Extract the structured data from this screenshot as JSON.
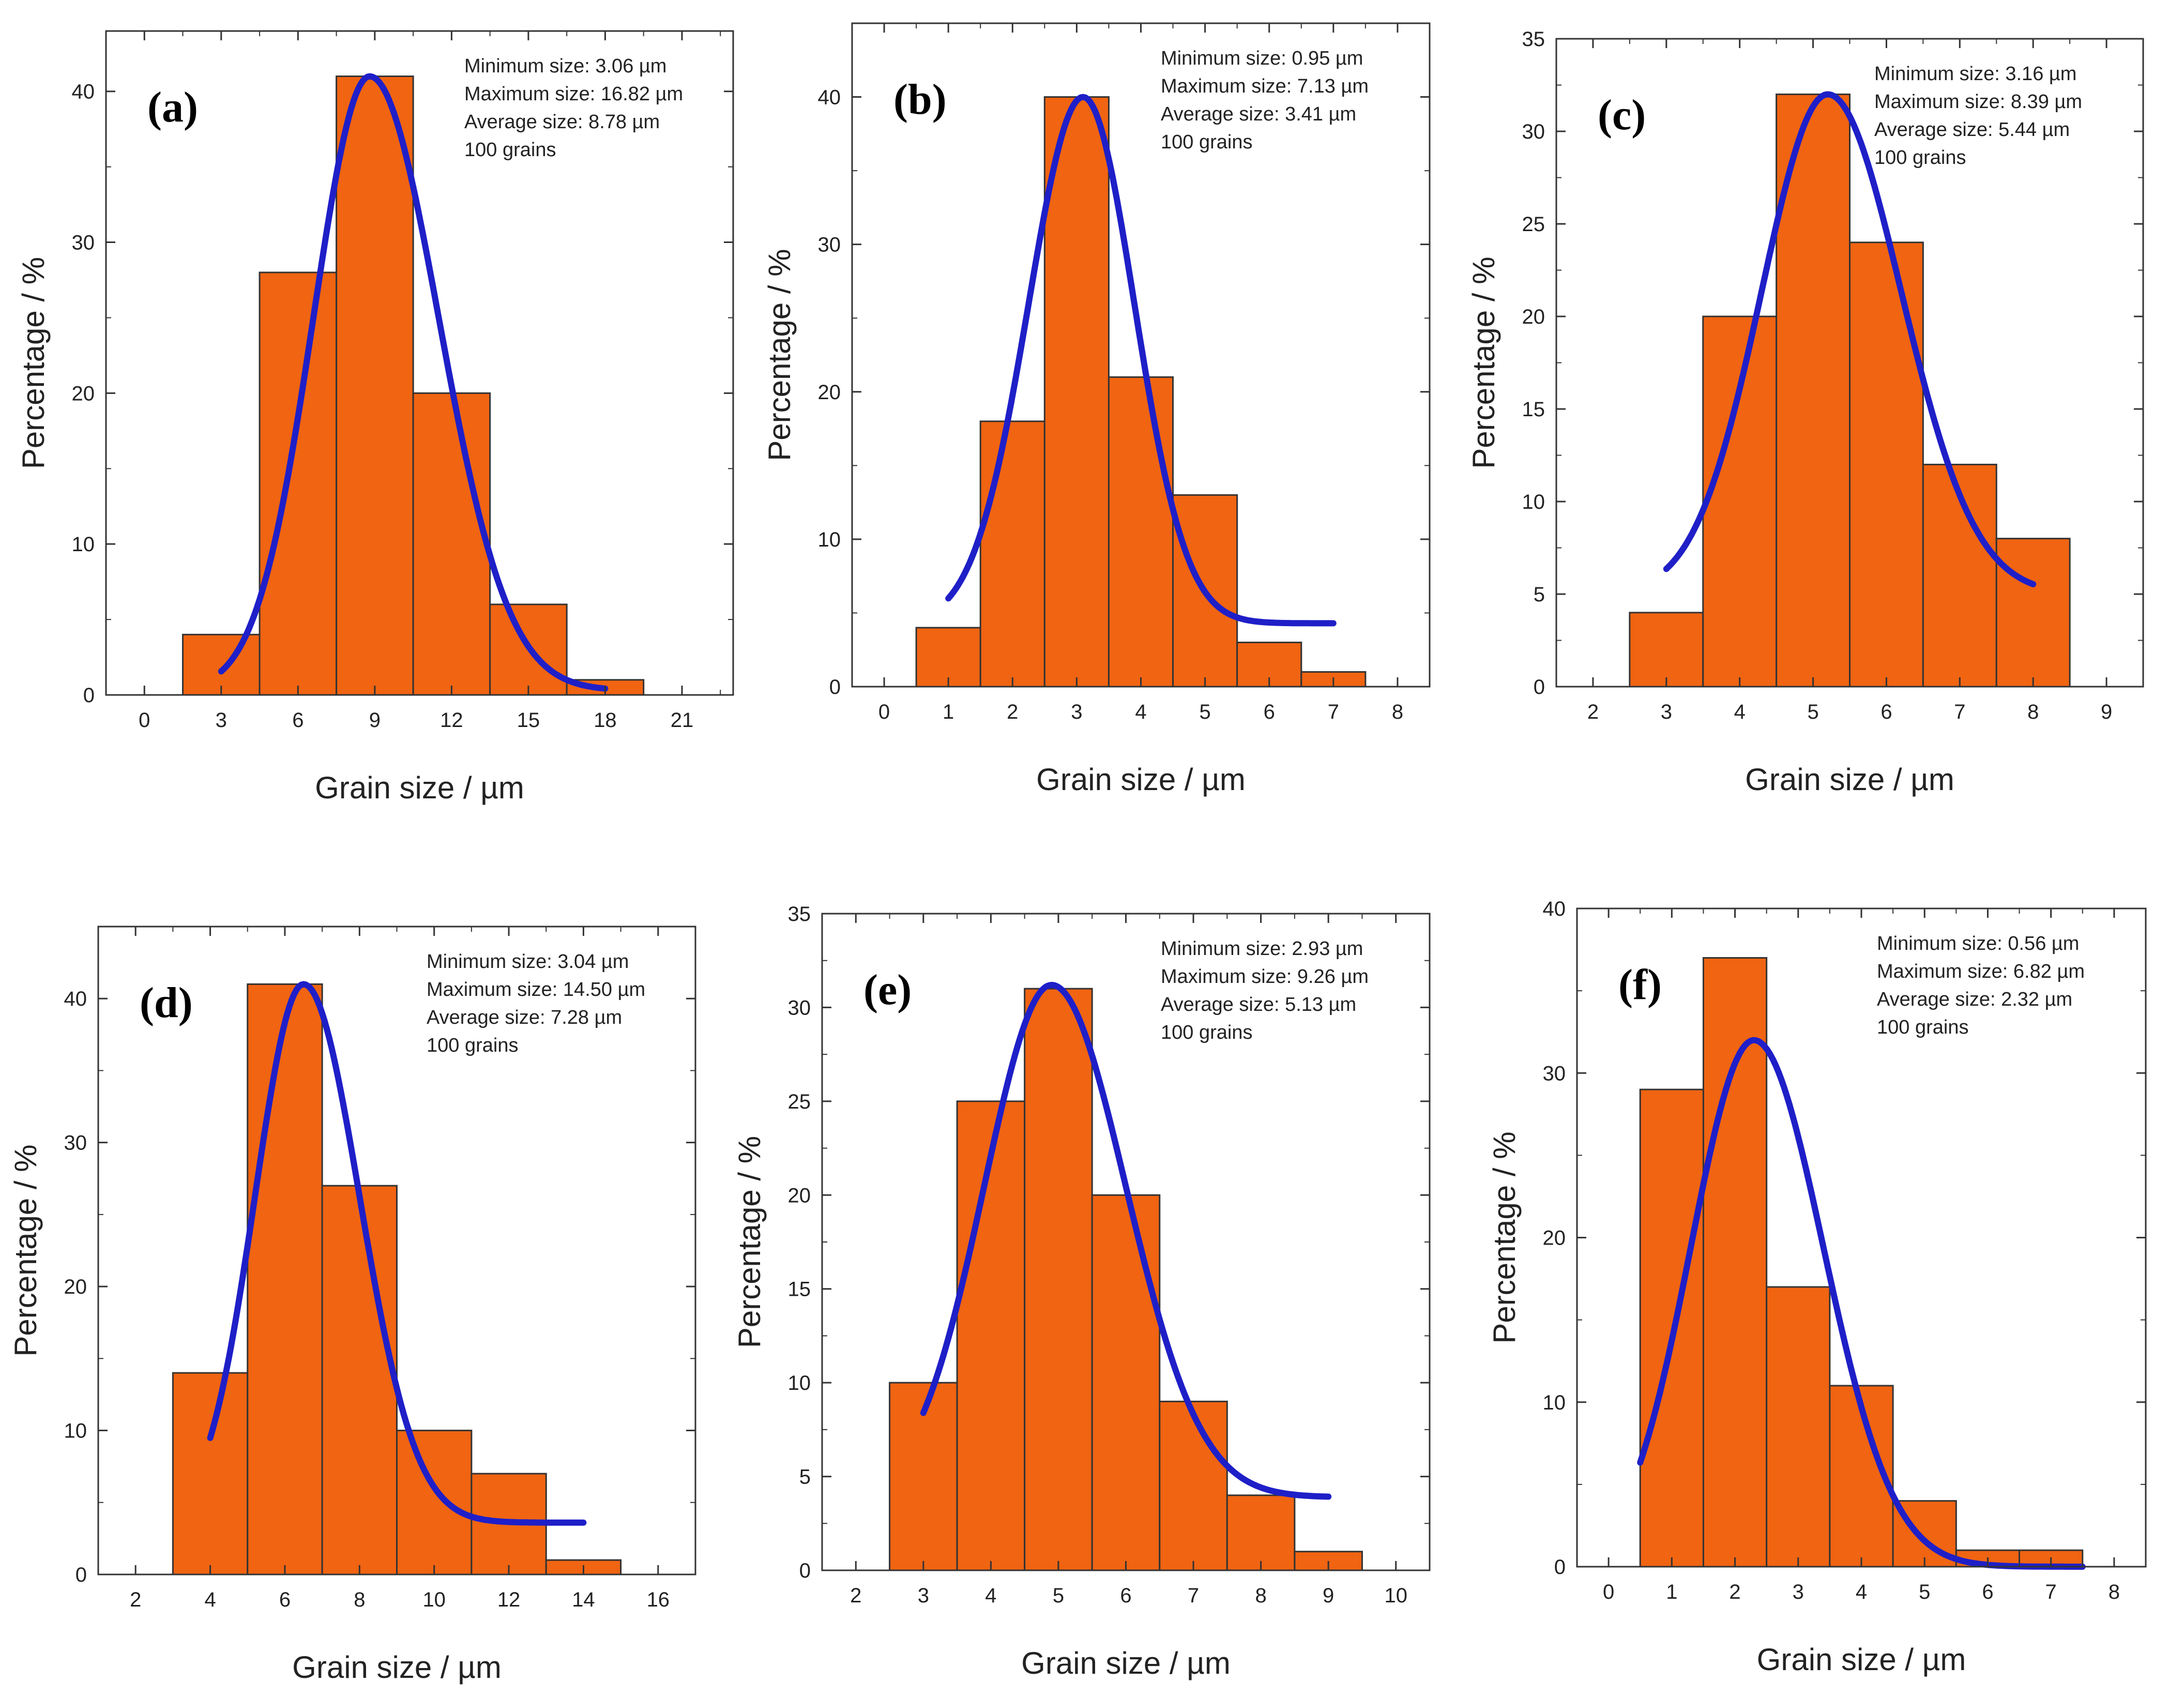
{
  "figure": {
    "description_free": true
  },
  "colors": {
    "bar_fill": "#F06412",
    "bar_stroke": "#333333",
    "fit_line": "#1F1FC8",
    "frame": "#333333"
  },
  "chart_data": [
    {
      "type": "bar",
      "panel_label": "(a)",
      "xlabel": "Grain size / µm",
      "ylabel": "Percentage / %",
      "xlim": [
        -1.5,
        23.0
      ],
      "ylim": [
        0,
        44.0
      ],
      "x_ticks": [
        0,
        3,
        6,
        9,
        12,
        15,
        18,
        21
      ],
      "y_ticks": [
        0,
        10,
        20,
        30,
        40
      ],
      "bin_width": 3.0,
      "bin_centers": [
        3,
        6,
        9,
        12,
        15,
        18
      ],
      "values": [
        4,
        28,
        41,
        20,
        6,
        1
      ],
      "fit": {
        "x_start": 3.0,
        "x_end": 18.0,
        "peak_x": 8.8,
        "peak_y": 41,
        "sigma_left": 2.2,
        "sigma_right": 2.7,
        "baseline": 0.3
      },
      "info": [
        "Minimum size: 3.06 µm",
        "Maximum size: 16.82 µm",
        "Average size: 8.78 µm",
        "100 grains"
      ]
    },
    {
      "type": "bar",
      "panel_label": "(b)",
      "xlabel": "Grain size / µm",
      "ylabel": "Percentage / %",
      "xlim": [
        -0.5,
        8.5
      ],
      "ylim": [
        0,
        45.0
      ],
      "x_ticks": [
        0,
        1,
        2,
        3,
        4,
        5,
        6,
        7,
        8
      ],
      "y_ticks": [
        0,
        10,
        20,
        30,
        40
      ],
      "bin_width": 1.0,
      "bin_centers": [
        1,
        2,
        3,
        4,
        5,
        6,
        7
      ],
      "values": [
        4,
        18,
        40,
        21,
        13,
        3,
        1
      ],
      "fit": {
        "x_start": 1.0,
        "x_end": 7.0,
        "peak_x": 3.1,
        "peak_y": 40,
        "sigma_left": 0.85,
        "sigma_right": 0.8,
        "baseline": 4.3
      },
      "info": [
        "Minimum size: 0.95 µm",
        "Maximum size: 7.13 µm",
        "Average size: 3.41 µm",
        "100 grains"
      ]
    },
    {
      "type": "bar",
      "panel_label": "(c)",
      "xlabel": "Grain size / µm",
      "ylabel": "Percentage / %",
      "xlim": [
        1.5,
        9.5
      ],
      "ylim": [
        0,
        35
      ],
      "x_ticks": [
        2,
        3,
        4,
        5,
        6,
        7,
        8,
        9
      ],
      "y_ticks": [
        0,
        5,
        10,
        15,
        20,
        25,
        30,
        35
      ],
      "bin_width": 1.0,
      "bin_centers": [
        3,
        4,
        5,
        6,
        7,
        8
      ],
      "values": [
        4,
        20,
        32,
        24,
        12,
        8
      ],
      "fit": {
        "x_start": 3.0,
        "x_end": 8.0,
        "peak_x": 5.2,
        "peak_y": 32,
        "sigma_left": 0.9,
        "sigma_right": 1.0,
        "baseline": 5.0
      },
      "info": [
        "Minimum size: 3.16 µm",
        "Maximum size: 8.39 µm",
        "Average size: 5.44 µm",
        "100 grains"
      ]
    },
    {
      "type": "bar",
      "panel_label": "(d)",
      "xlabel": "Grain size / µm",
      "ylabel": "Percentage / %",
      "xlim": [
        1.0,
        17.0
      ],
      "ylim": [
        0,
        45.0
      ],
      "x_ticks": [
        2,
        4,
        6,
        8,
        10,
        12,
        14,
        16
      ],
      "y_ticks": [
        0,
        10,
        20,
        30,
        40
      ],
      "bin_width": 2.0,
      "bin_centers": [
        4,
        6,
        8,
        10,
        12,
        14
      ],
      "values": [
        14,
        41,
        27,
        10,
        7,
        1
      ],
      "fit": {
        "x_start": 4.0,
        "x_end": 14.0,
        "peak_x": 6.5,
        "peak_y": 41,
        "sigma_left": 1.3,
        "sigma_right": 1.5,
        "baseline": 3.6
      },
      "info": [
        "Minimum size: 3.04 µm",
        "Maximum size: 14.50 µm",
        "Average size: 7.28 µm",
        "100 grains"
      ]
    },
    {
      "type": "bar",
      "panel_label": "(e)",
      "xlabel": "Grain size / µm",
      "ylabel": "Percentage / %",
      "xlim": [
        1.5,
        10.5
      ],
      "ylim": [
        0,
        35
      ],
      "x_ticks": [
        2,
        3,
        4,
        5,
        6,
        7,
        8,
        9,
        10
      ],
      "y_ticks": [
        0,
        5,
        10,
        15,
        20,
        25,
        30,
        35
      ],
      "bin_width": 1.0,
      "bin_centers": [
        3,
        4,
        5,
        6,
        7,
        8,
        9
      ],
      "values": [
        10,
        25,
        31,
        20,
        9,
        4,
        1
      ],
      "fit": {
        "x_start": 3.0,
        "x_end": 9.0,
        "peak_x": 4.9,
        "peak_y": 31.2,
        "sigma_left": 1.0,
        "sigma_right": 1.1,
        "baseline": 3.9
      },
      "info": [
        "Minimum size: 2.93 µm",
        "Maximum size: 9.26 µm",
        "Average size: 5.13 µm",
        "100 grains"
      ]
    },
    {
      "type": "bar",
      "panel_label": "(f)",
      "xlabel": "Grain size / µm",
      "ylabel": "Percentage / %",
      "xlim": [
        -0.5,
        8.5
      ],
      "ylim": [
        0,
        40
      ],
      "x_ticks": [
        0,
        1,
        2,
        3,
        4,
        5,
        6,
        7,
        8
      ],
      "y_ticks": [
        0,
        10,
        20,
        30,
        40
      ],
      "bin_width": 1.0,
      "bin_centers": [
        1,
        2,
        3,
        4,
        5,
        6,
        7
      ],
      "values": [
        29,
        37,
        17,
        11,
        4,
        1,
        1
      ],
      "fit": {
        "x_start": 0.5,
        "x_end": 7.5,
        "peak_x": 2.3,
        "peak_y": 32,
        "sigma_left": 1.0,
        "sigma_right": 1.1,
        "baseline": 0.0
      },
      "info": [
        "Minimum size: 0.56 µm",
        "Maximum size: 6.82 µm",
        "Average size: 2.32 µm",
        "100 grains"
      ]
    }
  ]
}
